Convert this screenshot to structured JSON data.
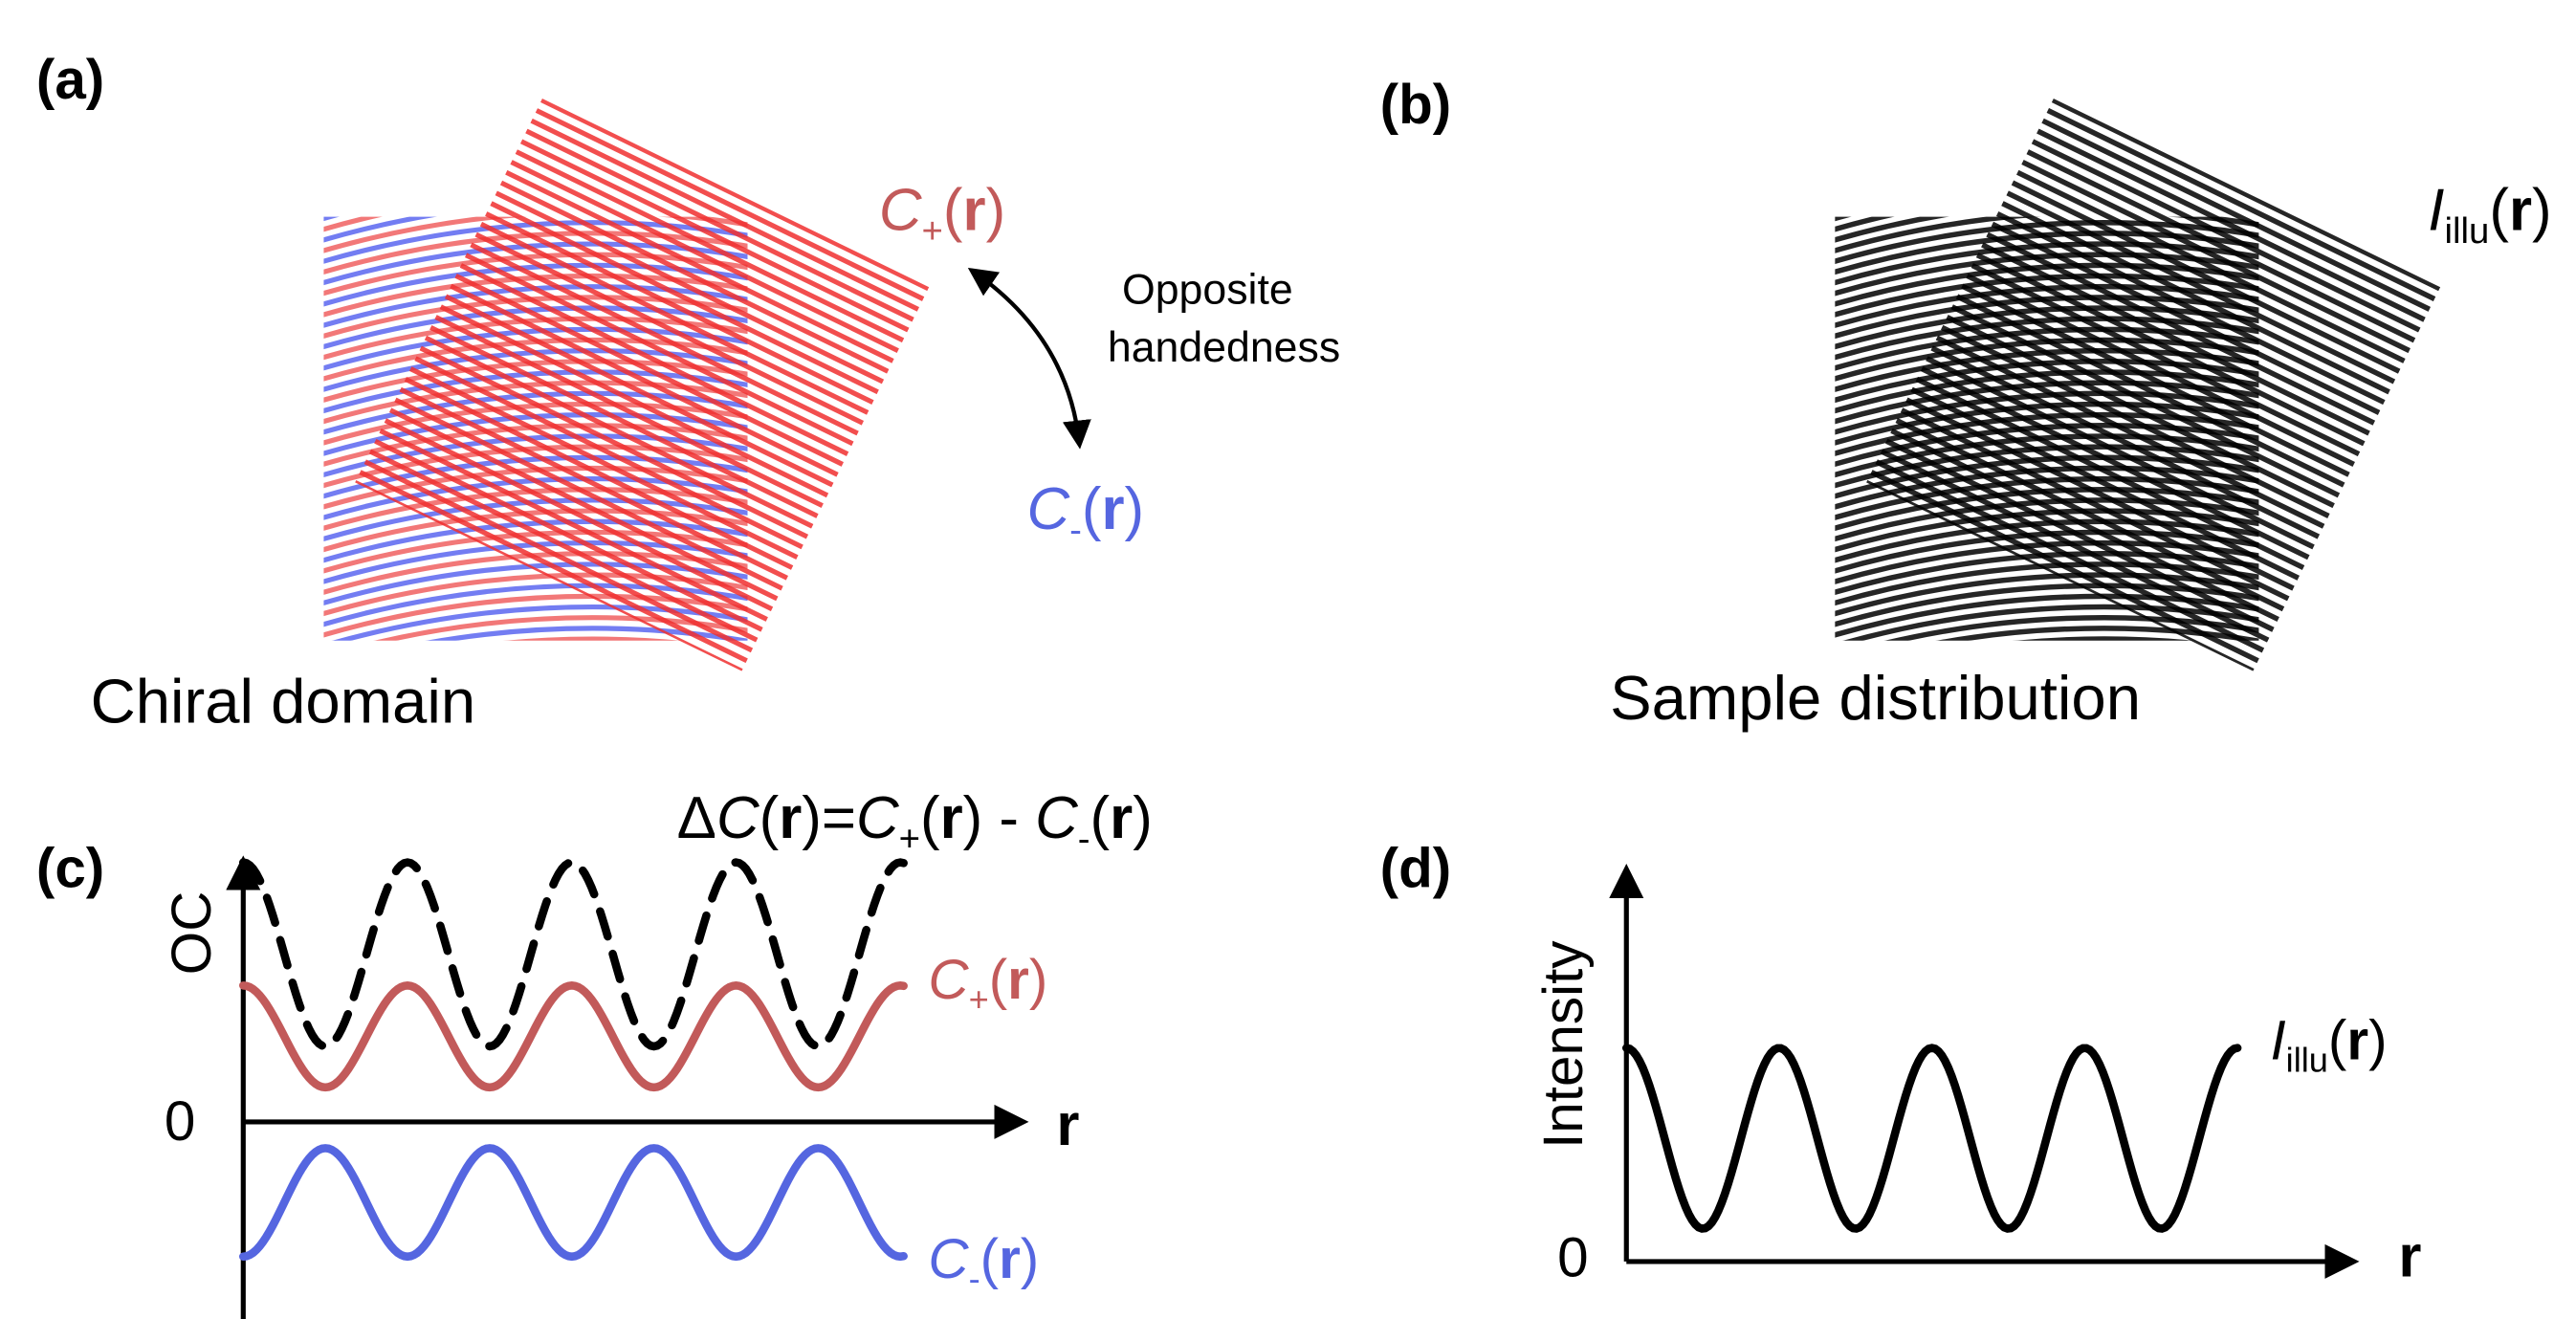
{
  "panel_a": {
    "label": "(a)",
    "caption": "Chiral domain",
    "c_plus": [
      {
        "text": "C",
        "style": "italic"
      },
      {
        "text": "+",
        "style": "sub"
      },
      {
        "text": "(",
        "style": "normal"
      },
      {
        "text": "r",
        "style": "bold"
      },
      {
        "text": ")",
        "style": "normal"
      }
    ],
    "c_minus": [
      {
        "text": "C",
        "style": "italic"
      },
      {
        "text": "-",
        "style": "sub"
      },
      {
        "text": "(",
        "style": "normal"
      },
      {
        "text": "r",
        "style": "bold"
      },
      {
        "text": ")",
        "style": "normal"
      }
    ],
    "annotation": [
      "Opposite",
      "handedness"
    ]
  },
  "panel_b": {
    "label": "(b)",
    "caption": "Sample distribution",
    "intensity": [
      {
        "text": "I",
        "style": "italic"
      },
      {
        "text": "illu",
        "style": "sub"
      },
      {
        "text": "(",
        "style": "normal"
      },
      {
        "text": "r",
        "style": "bold"
      },
      {
        "text": ")",
        "style": "normal"
      }
    ]
  },
  "panel_c": {
    "label": "(c)",
    "y_label": "OC",
    "zero": "0",
    "x_label": "r",
    "delta": [
      {
        "text": "Δ",
        "style": "normal"
      },
      {
        "text": "C",
        "style": "italic"
      },
      {
        "text": "(",
        "style": "normal"
      },
      {
        "text": "r",
        "style": "bold"
      },
      {
        "text": ")=",
        "style": "normal"
      },
      {
        "text": "C",
        "style": "italic"
      },
      {
        "text": "+",
        "style": "sub"
      },
      {
        "text": "(",
        "style": "normal"
      },
      {
        "text": "r",
        "style": "bold"
      },
      {
        "text": ") - ",
        "style": "normal"
      },
      {
        "text": "C",
        "style": "italic"
      },
      {
        "text": "-",
        "style": "sub"
      },
      {
        "text": "(",
        "style": "normal"
      },
      {
        "text": "r",
        "style": "bold"
      },
      {
        "text": ")",
        "style": "normal"
      }
    ],
    "c_plus": [
      {
        "text": "C",
        "style": "italic"
      },
      {
        "text": "+",
        "style": "sub"
      },
      {
        "text": "(",
        "style": "normal"
      },
      {
        "text": "r",
        "style": "bold"
      },
      {
        "text": ")",
        "style": "normal"
      }
    ],
    "c_minus": [
      {
        "text": "C",
        "style": "italic"
      },
      {
        "text": "-",
        "style": "sub"
      },
      {
        "text": "(",
        "style": "normal"
      },
      {
        "text": "r",
        "style": "bold"
      },
      {
        "text": ")",
        "style": "normal"
      }
    ]
  },
  "panel_d": {
    "label": "(d)",
    "y_label": "Intensity",
    "zero": "0",
    "x_label": "r",
    "intensity": [
      {
        "text": "I",
        "style": "italic"
      },
      {
        "text": "illu",
        "style": "sub"
      },
      {
        "text": "(",
        "style": "normal"
      },
      {
        "text": "r",
        "style": "bold"
      },
      {
        "text": ")",
        "style": "normal"
      }
    ]
  }
}
